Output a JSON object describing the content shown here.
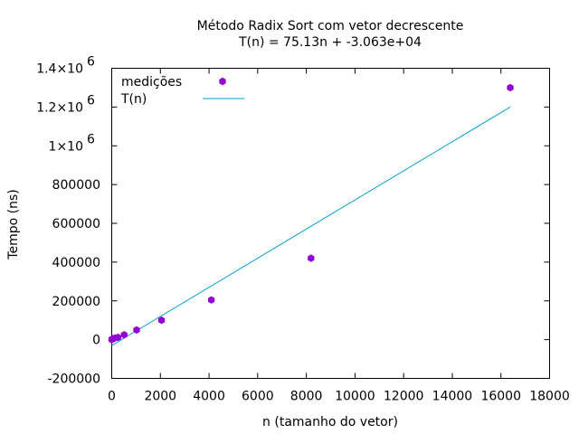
{
  "chart_data": {
    "type": "scatter",
    "title": "Método Radix Sort com vetor decrescente",
    "subtitle": "T(n) = 75.13n + -3.063e+04",
    "xlabel": "n (tamanho do vetor)",
    "ylabel": "Tempo (ns)",
    "xlim": [
      0,
      18000
    ],
    "ylim": [
      -200000,
      1400000
    ],
    "x_ticks": [
      {
        "value": 0,
        "label": "0"
      },
      {
        "value": 2000,
        "label": "2000"
      },
      {
        "value": 4000,
        "label": "4000"
      },
      {
        "value": 6000,
        "label": "6000"
      },
      {
        "value": 8000,
        "label": "8000"
      },
      {
        "value": 10000,
        "label": "10000"
      },
      {
        "value": 12000,
        "label": "12000"
      },
      {
        "value": 14000,
        "label": "14000"
      },
      {
        "value": 16000,
        "label": "16000"
      },
      {
        "value": 18000,
        "label": "18000"
      }
    ],
    "y_ticks": [
      {
        "value": -200000,
        "label": "-200000",
        "exp": ""
      },
      {
        "value": 0,
        "label": "0",
        "exp": ""
      },
      {
        "value": 200000,
        "label": "200000",
        "exp": ""
      },
      {
        "value": 400000,
        "label": "400000",
        "exp": ""
      },
      {
        "value": 600000,
        "label": "600000",
        "exp": ""
      },
      {
        "value": 800000,
        "label": "800000",
        "exp": ""
      },
      {
        "value": 1000000,
        "label": "1×10",
        "exp": "6"
      },
      {
        "value": 1200000,
        "label": "1.2×10",
        "exp": "6"
      },
      {
        "value": 1400000,
        "label": "1.4×10",
        "exp": "6"
      }
    ],
    "grid": false,
    "legend_position": "top-left",
    "series": [
      {
        "name": "medições",
        "type": "scatter",
        "color": "#9400d3",
        "x": [
          1,
          2,
          4,
          8,
          16,
          32,
          64,
          128,
          256,
          512,
          1024,
          2048,
          4096,
          8192,
          16384
        ],
        "y": [
          200,
          400,
          700,
          1400,
          2500,
          3500,
          5000,
          8000,
          12000,
          25000,
          50000,
          100000,
          205000,
          420000,
          1300000
        ]
      },
      {
        "name": "T(n)",
        "type": "line",
        "color": "#009ed7",
        "x": [
          0,
          16384
        ],
        "y": [
          -30630,
          1200300
        ]
      }
    ]
  }
}
